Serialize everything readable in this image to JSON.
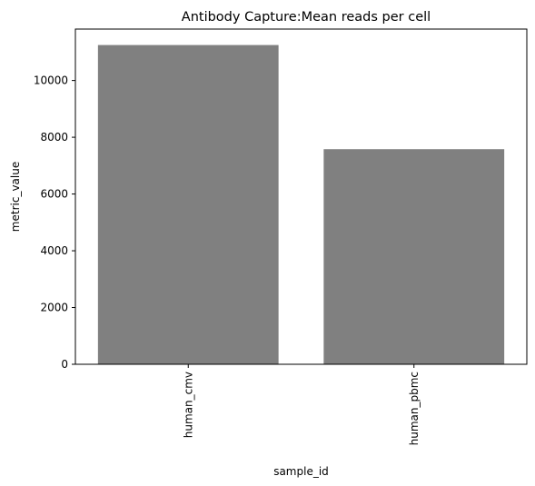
{
  "chart_data": {
    "type": "bar",
    "title": "Antibody Capture:Mean reads per cell",
    "xlabel": "sample_id",
    "ylabel": "metric_value",
    "categories": [
      "human_cmv",
      "human_pbmc"
    ],
    "values": [
      11250,
      7580
    ],
    "ylim": [
      0,
      11812.5
    ],
    "yticks": [
      0,
      2000,
      4000,
      6000,
      8000,
      10000
    ],
    "ytick_labels": [
      "0",
      "2000",
      "4000",
      "6000",
      "8000",
      "10000"
    ],
    "bar_color": "#808080",
    "grid": false,
    "legend": "none"
  }
}
